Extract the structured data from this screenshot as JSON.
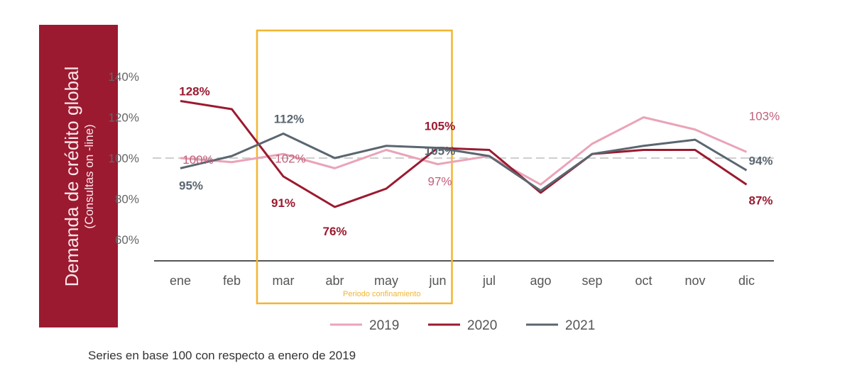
{
  "chart_data": {
    "type": "line",
    "title": "",
    "ylabel": "Demanda de crédito global",
    "ylabel_sub": "(Consultas on -line)",
    "xlabel": "",
    "categories": [
      "ene",
      "feb",
      "mar",
      "abr",
      "may",
      "jun",
      "jul",
      "ago",
      "sep",
      "oct",
      "nov",
      "dic"
    ],
    "yticks": [
      "140%",
      "120%",
      "100%",
      "80%",
      "60%"
    ],
    "ytick_values": [
      140,
      120,
      100,
      80,
      60
    ],
    "ylim": [
      50,
      150
    ],
    "reference_line": 100,
    "grid": false,
    "legend_position": "bottom",
    "series": [
      {
        "name": "2019",
        "color": "#eaa3b8",
        "values": [
          100,
          98,
          102,
          95,
          104,
          97,
          101,
          87,
          107,
          120,
          114,
          103
        ]
      },
      {
        "name": "2020",
        "color": "#9b1a30",
        "values": [
          128,
          124,
          91,
          76,
          85,
          105,
          104,
          83,
          102,
          104,
          104,
          87
        ]
      },
      {
        "name": "2021",
        "color": "#5a6670",
        "values": [
          95,
          101,
          112,
          100,
          106,
          105,
          101,
          84,
          102,
          106,
          109,
          94
        ]
      }
    ],
    "data_labels": [
      {
        "series": "2020",
        "index": 0,
        "text": "128%"
      },
      {
        "series": "2019",
        "index": 0,
        "text": "100%"
      },
      {
        "series": "2021",
        "index": 0,
        "text": "95%"
      },
      {
        "series": "2021",
        "index": 2,
        "text": "112%"
      },
      {
        "series": "2019",
        "index": 2,
        "text": "102%"
      },
      {
        "series": "2020",
        "index": 2,
        "text": "91%"
      },
      {
        "series": "2020",
        "index": 3,
        "text": "76%"
      },
      {
        "series": "2020",
        "index": 5,
        "text": "105%"
      },
      {
        "series": "2021",
        "index": 5,
        "text": "105%"
      },
      {
        "series": "2019",
        "index": 5,
        "text": "97%"
      },
      {
        "series": "2019",
        "index": 11,
        "text": "103%"
      },
      {
        "series": "2021",
        "index": 11,
        "text": "94%"
      },
      {
        "series": "2020",
        "index": 11,
        "text": "87%"
      }
    ],
    "annotation": {
      "text": "Periodo confinamiento",
      "from": "mar",
      "to": "jun",
      "color": "#f2b530"
    }
  },
  "footnote": "Series en base 100 con respecto a enero de 2019"
}
